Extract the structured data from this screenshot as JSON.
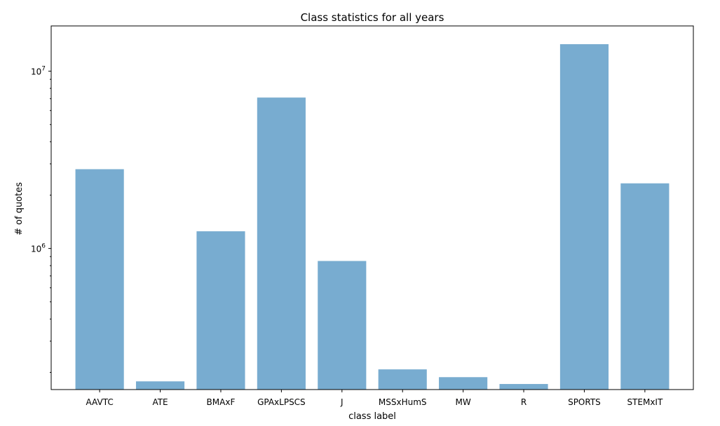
{
  "chart_data": {
    "type": "bar",
    "title": "Class statistics for all years",
    "xlabel": "class label",
    "ylabel": "# of quotes",
    "yscale": "log",
    "ylim": [
      160000,
      18000000
    ],
    "grid": false,
    "bar_color": "#78acd0",
    "categories": [
      "AAVTC",
      "ATE",
      "BMAxF",
      "GPAxLPSCS",
      "J",
      "MSSxHumS",
      "MW",
      "R",
      "SPORTS",
      "STEMxIT"
    ],
    "values": [
      2800000,
      178000,
      1250000,
      7100000,
      850000,
      208000,
      188000,
      172000,
      14200000,
      2330000
    ],
    "ytick_labels": [
      {
        "value": 1000000,
        "base": "10",
        "exp": "6"
      },
      {
        "value": 10000000,
        "base": "10",
        "exp": "7"
      }
    ]
  }
}
